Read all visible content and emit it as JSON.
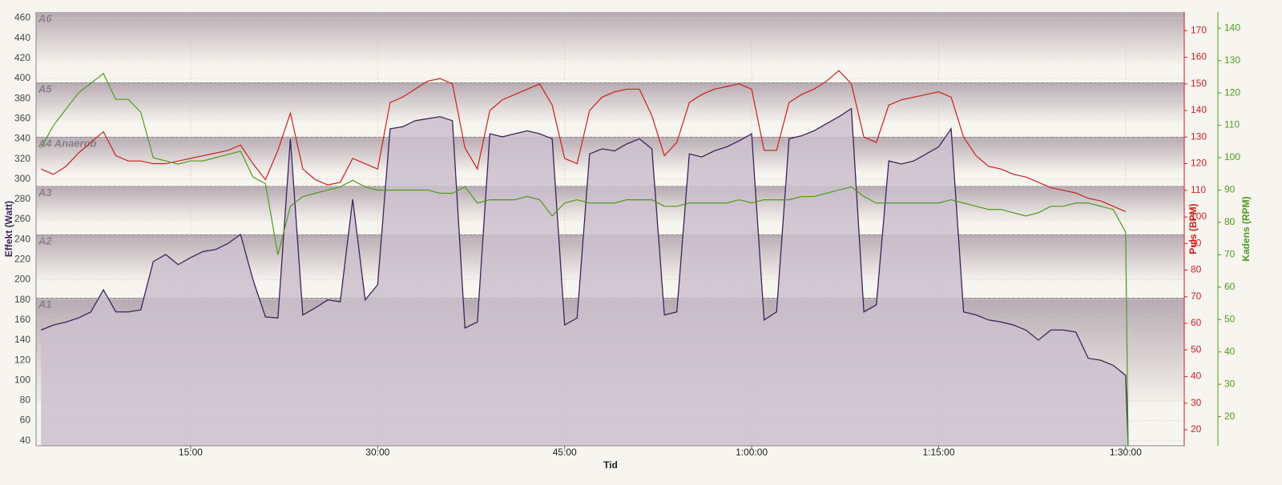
{
  "chart_data": {
    "type": "line",
    "xlabel": "Tid",
    "ylabel": "Effekt (Watt)",
    "y2label": "Puls (BPM)",
    "y3label": "Kadens (RPM)",
    "xlim": [
      2.6,
      94.7
    ],
    "xticks": [
      {
        "value": 15,
        "label": "15:00"
      },
      {
        "value": 30,
        "label": "30:00"
      },
      {
        "value": 45,
        "label": "45:00"
      },
      {
        "value": 60,
        "label": "1:00:00"
      },
      {
        "value": 75,
        "label": "1:15:00"
      },
      {
        "value": 90,
        "label": "1:30:00"
      }
    ],
    "ylim": [
      35,
      466
    ],
    "yticks": [
      40,
      60,
      80,
      100,
      120,
      140,
      160,
      180,
      200,
      220,
      240,
      260,
      280,
      300,
      320,
      340,
      360,
      380,
      400,
      420,
      440,
      460
    ],
    "y2lim": [
      14,
      177
    ],
    "y2ticks": [
      20,
      30,
      40,
      50,
      60,
      70,
      80,
      90,
      100,
      110,
      120,
      130,
      140,
      150,
      160,
      170
    ],
    "y3lim": [
      11,
      145
    ],
    "y3ticks": [
      20,
      30,
      40,
      50,
      60,
      70,
      80,
      90,
      100,
      110,
      120,
      130,
      140
    ],
    "grid": true,
    "zones": [
      {
        "name": "A1",
        "upper": 182
      },
      {
        "name": "A2",
        "upper": 245
      },
      {
        "name": "A3",
        "upper": 293
      },
      {
        "name": "A4 Anaerob",
        "upper": 342
      },
      {
        "name": "A5",
        "upper": 396
      },
      {
        "name": "A6"
      }
    ],
    "x": [
      3,
      4,
      5,
      6,
      7,
      8,
      9,
      10,
      11,
      12,
      13,
      14,
      15,
      16,
      17,
      18,
      19,
      20,
      21,
      22,
      23,
      24,
      25,
      26,
      27,
      28,
      29,
      30,
      31,
      32,
      33,
      34,
      35,
      36,
      37,
      38,
      39,
      40,
      41,
      42,
      43,
      44,
      45,
      46,
      47,
      48,
      49,
      50,
      51,
      52,
      53,
      54,
      55,
      56,
      57,
      58,
      59,
      60,
      61,
      62,
      63,
      64,
      65,
      66,
      67,
      68,
      69,
      70,
      71,
      72,
      73,
      74,
      75,
      76,
      77,
      78,
      79,
      80,
      81,
      82,
      83,
      84,
      85,
      86,
      87,
      88,
      89,
      90,
      90.2
    ],
    "series": [
      {
        "type": "area",
        "axis": "y",
        "color": "#3d2358",
        "fill": "#cbbfcc",
        "values": [
          150,
          155,
          158,
          162,
          168,
          190,
          168,
          168,
          170,
          218,
          225,
          215,
          222,
          228,
          230,
          236,
          245,
          200,
          163,
          162,
          340,
          165,
          172,
          180,
          178,
          280,
          180,
          195,
          350,
          352,
          358,
          360,
          362,
          358,
          152,
          158,
          345,
          342,
          345,
          348,
          345,
          340,
          155,
          162,
          325,
          330,
          328,
          335,
          340,
          330,
          165,
          168,
          325,
          322,
          328,
          332,
          338,
          345,
          160,
          168,
          340,
          343,
          348,
          355,
          362,
          370,
          168,
          175,
          318,
          315,
          318,
          325,
          332,
          350,
          168,
          165,
          160,
          158,
          155,
          150,
          140,
          150,
          150,
          148,
          122,
          120,
          115,
          105,
          35
        ]
      },
      {
        "type": "line",
        "axis": "y2",
        "color": "#cc2020",
        "values": [
          118,
          116,
          119,
          124,
          128,
          132,
          123,
          121,
          121,
          120,
          120,
          121,
          122,
          123,
          124,
          125,
          127,
          120,
          114,
          125,
          139,
          118,
          114,
          112,
          113,
          122,
          120,
          118,
          143,
          145,
          148,
          151,
          152,
          150,
          126,
          118,
          140,
          144,
          146,
          148,
          150,
          142,
          122,
          120,
          140,
          145,
          147,
          148,
          148,
          138,
          123,
          128,
          143,
          146,
          148,
          149,
          150,
          148,
          125,
          125,
          143,
          146,
          148,
          151,
          155,
          150,
          130,
          128,
          142,
          144,
          145,
          146,
          147,
          145,
          130,
          123,
          119,
          118,
          116,
          115,
          113,
          111,
          110,
          109,
          107,
          106,
          104,
          102,
          null
        ]
      },
      {
        "type": "line",
        "axis": "y3",
        "color": "#4e9a1c",
        "values": [
          103,
          110,
          115,
          120,
          123,
          126,
          118,
          118,
          114,
          100,
          99,
          98,
          99,
          99,
          100,
          101,
          102,
          94,
          92,
          70,
          85,
          88,
          89,
          90,
          91,
          93,
          91,
          90,
          90,
          90,
          90,
          90,
          89,
          89,
          91,
          86,
          87,
          87,
          87,
          88,
          87,
          82,
          86,
          87,
          86,
          86,
          86,
          87,
          87,
          87,
          85,
          85,
          86,
          86,
          86,
          86,
          87,
          86,
          87,
          87,
          87,
          88,
          88,
          89,
          90,
          91,
          88,
          86,
          86,
          86,
          86,
          86,
          86,
          87,
          86,
          85,
          84,
          84,
          83,
          82,
          83,
          85,
          85,
          86,
          86,
          85,
          84,
          77,
          11
        ]
      }
    ]
  }
}
